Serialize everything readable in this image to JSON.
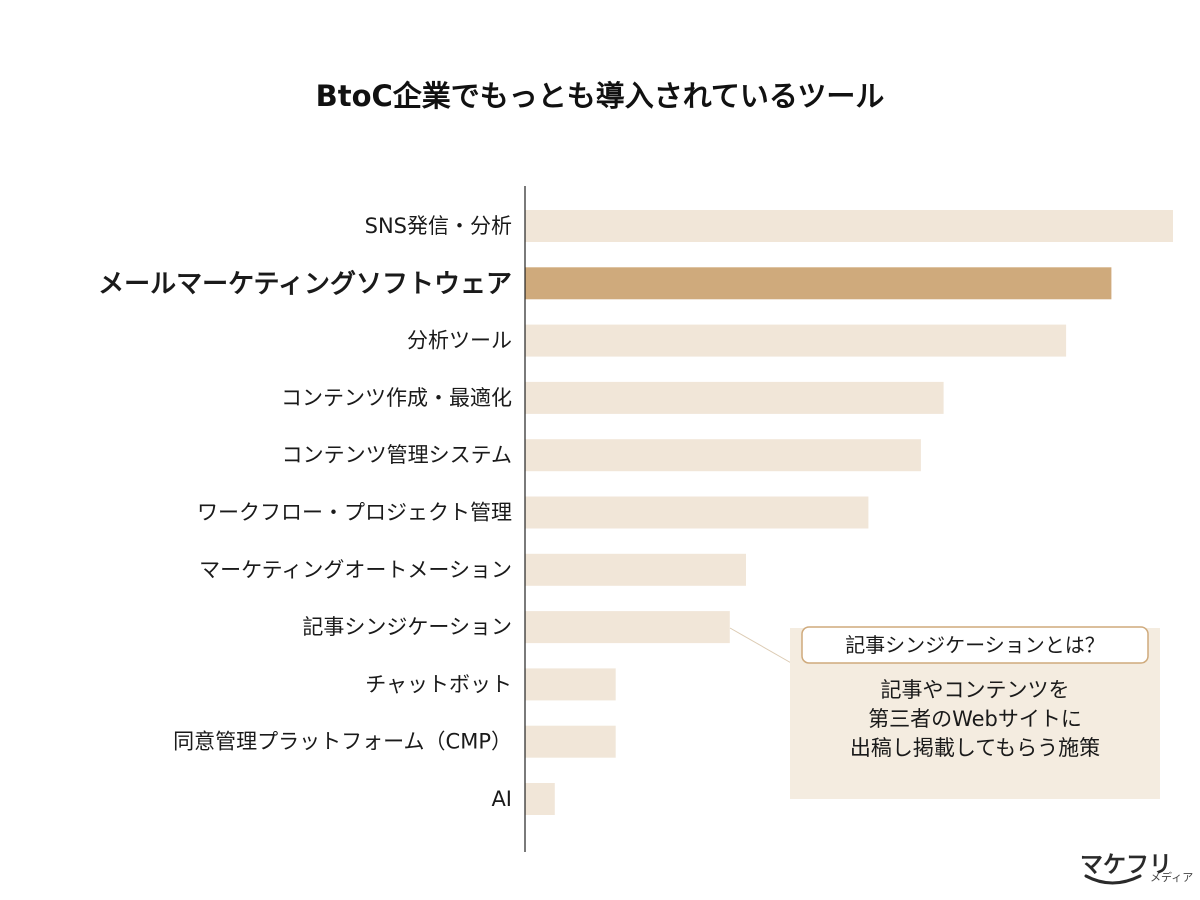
{
  "colors": {
    "bar": "#f1e6d8",
    "bar_highlight": "#cfaa7c",
    "label_highlight": "#cfaa7c",
    "axis": "#222222",
    "callout_bg": "#f4ece0",
    "callout_border": "#cfaa7c"
  },
  "chart_data": {
    "type": "bar",
    "orientation": "horizontal",
    "title": "BtoC企業でもっとも導入されているツール",
    "categories": [
      "SNS発信・分析",
      "メールマーケティングソフトウェア",
      "分析ツール",
      "コンテンツ作成・最適化",
      "コンテンツ管理システム",
      "ワークフロー・プロジェクト管理",
      "マーケティングオートメーション",
      "記事シンジケーション",
      "チャットボット",
      "同意管理プラットフォーム（CMP）",
      "AI"
    ],
    "values": [
      100,
      90.5,
      83.5,
      64.6,
      61.1,
      53.0,
      34.1,
      31.6,
      14.0,
      14.0,
      4.6
    ],
    "highlight_index": 1,
    "xlim": [
      0,
      100
    ],
    "xlabel": "",
    "ylabel": "",
    "grid": false,
    "legend": "none"
  },
  "callout": {
    "title": "記事シンジケーションとは？",
    "lines": [
      "記事やコンテンツを",
      "第三者のWebサイトに",
      "出稿し掲載してもらう施策"
    ]
  },
  "logo": {
    "main": "マケフリ",
    "sub": "メディア"
  }
}
